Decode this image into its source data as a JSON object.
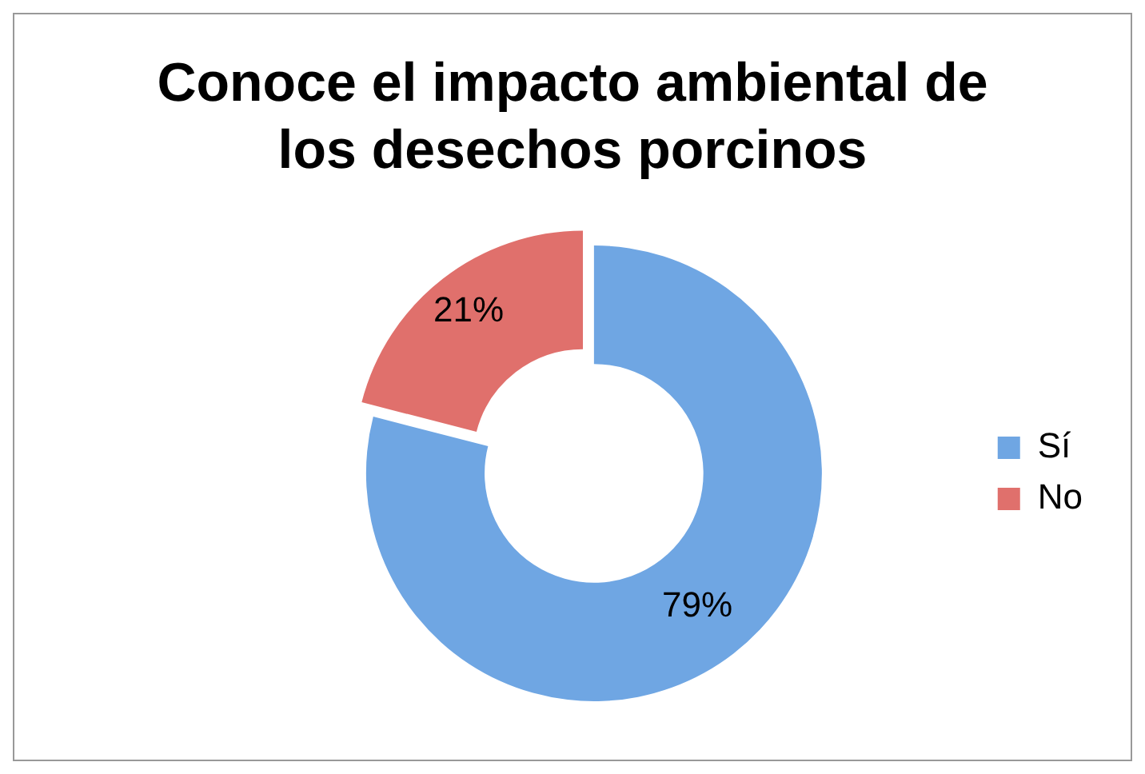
{
  "chart_data": {
    "type": "donut",
    "title": "Conoce el impacto ambiental de los desechos porcinos",
    "categories": [
      "Sí",
      "No"
    ],
    "values": [
      79,
      21
    ],
    "value_labels": [
      "79%",
      "21%"
    ],
    "colors": [
      "#6fa6e3",
      "#e0706c"
    ],
    "legend": "right"
  }
}
